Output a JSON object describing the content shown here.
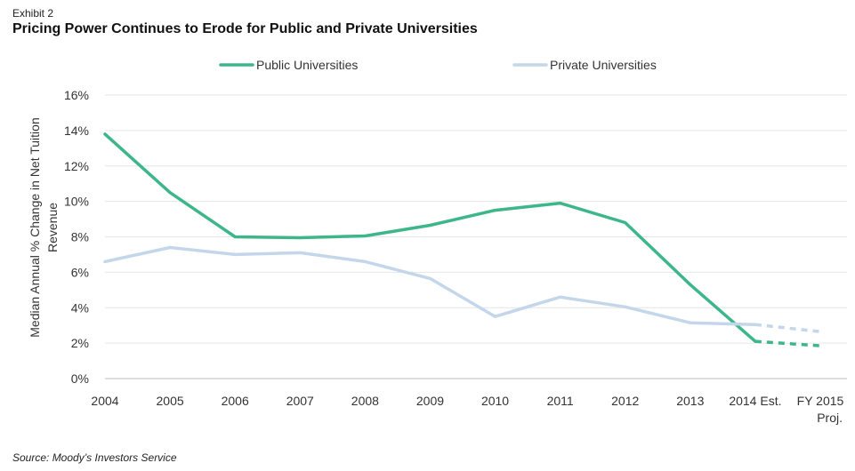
{
  "header": {
    "exhibit": "Exhibit 2",
    "title": "Pricing Power Continues to Erode for Public and Private Universities"
  },
  "footer": {
    "source": "Source: Moody’s Investors Service"
  },
  "colors": {
    "public": "#3cb68a",
    "private": "#c4d6ea",
    "grid": "#e6e6e6",
    "axis": "#bdbdbd"
  },
  "chart_data": {
    "type": "line",
    "title": "Pricing Power Continues to Erode for Public and Private Universities",
    "ylabel_lines": [
      "Median Annual % Change in Net  Tuition",
      "Revenue"
    ],
    "xlabel": "",
    "categories": [
      "2004",
      "2005",
      "2006",
      "2007",
      "2008",
      "2009",
      "2010",
      "2011",
      "2012",
      "2013",
      "2014 Est.",
      "FY 2015 Proj."
    ],
    "category_labels": [
      [
        "2004"
      ],
      [
        "2005"
      ],
      [
        "2006"
      ],
      [
        "2007"
      ],
      [
        "2008"
      ],
      [
        "2009"
      ],
      [
        "2010"
      ],
      [
        "2011"
      ],
      [
        "2012"
      ],
      [
        "2013"
      ],
      [
        "2014 Est."
      ],
      [
        "FY 2015",
        "Proj."
      ]
    ],
    "ylim": [
      0,
      16
    ],
    "yticks": [
      0,
      2,
      4,
      6,
      8,
      10,
      12,
      14,
      16
    ],
    "ytick_labels": [
      "0%",
      "2%",
      "4%",
      "6%",
      "8%",
      "10%",
      "12%",
      "14%",
      "16%"
    ],
    "grid": "horizontal",
    "legend_position": "top",
    "projected_from_index": 10,
    "series": [
      {
        "name": "Public Universities",
        "color_key": "public",
        "values": [
          13.8,
          10.5,
          8.0,
          7.95,
          8.05,
          8.65,
          9.5,
          9.9,
          8.8,
          5.3,
          2.1,
          1.85
        ]
      },
      {
        "name": "Private Universities",
        "color_key": "private",
        "values": [
          6.6,
          7.4,
          7.0,
          7.1,
          6.6,
          5.65,
          3.5,
          4.6,
          4.05,
          3.15,
          3.05,
          2.65
        ]
      }
    ]
  }
}
